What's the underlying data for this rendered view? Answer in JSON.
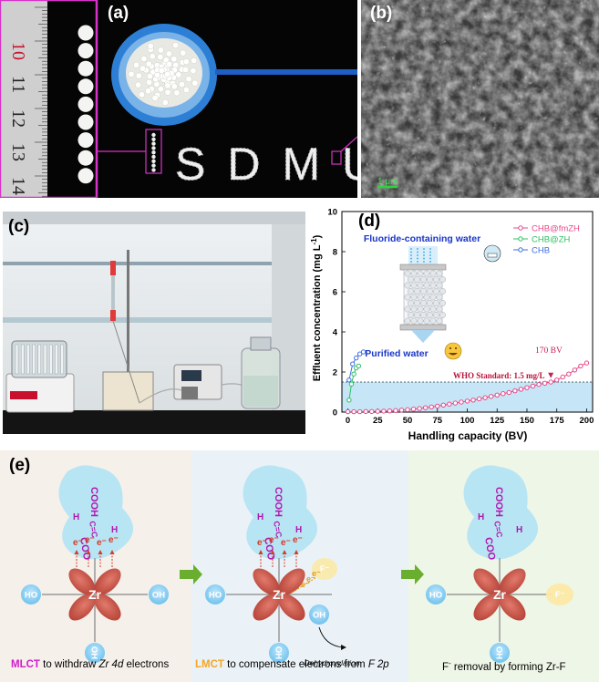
{
  "panel_a": {
    "label": "(a)",
    "ruler_numbers": [
      "10",
      "11",
      "12",
      "13",
      "14"
    ],
    "text": "SDMU"
  },
  "panel_b": {
    "label": "(b)",
    "scale_bar": "1 μm"
  },
  "panel_c": {
    "label": "(c)"
  },
  "panel_d": {
    "label": "(d)",
    "ylabel": "Effluent concentration (mg L",
    "ylabel_sup": "-1",
    "ylabel_end": ")",
    "xlabel": "Handling capacity (BV)",
    "inset_top": "Fluoride-containing water",
    "inset_bottom": "Purified water",
    "who_label": "WHO Standard: 1.5 mg/L",
    "bv_label": "170 BV",
    "xticks": [
      "0",
      "25",
      "50",
      "75",
      "100",
      "125",
      "150",
      "175",
      "200"
    ],
    "yticks": [
      "0",
      "2",
      "4",
      "6",
      "8",
      "10"
    ]
  },
  "chart_data": {
    "type": "line",
    "xlabel": "Handling capacity (BV)",
    "ylabel": "Effluent concentration (mg L-1)",
    "xlim": [
      -5,
      205
    ],
    "ylim": [
      0,
      10
    ],
    "threshold": 1.5,
    "legend_position": "top-right",
    "series": [
      {
        "name": "CHB@fmZH",
        "color": "#e8488a",
        "x": [
          0,
          5,
          10,
          15,
          20,
          25,
          30,
          35,
          40,
          45,
          50,
          55,
          60,
          65,
          70,
          75,
          80,
          85,
          90,
          95,
          100,
          105,
          110,
          115,
          120,
          125,
          130,
          135,
          140,
          145,
          150,
          155,
          160,
          165,
          170,
          175,
          180,
          185,
          190,
          195,
          200
        ],
        "y": [
          0.02,
          0.02,
          0.02,
          0.03,
          0.03,
          0.04,
          0.05,
          0.06,
          0.08,
          0.1,
          0.12,
          0.15,
          0.18,
          0.22,
          0.26,
          0.3,
          0.35,
          0.4,
          0.45,
          0.5,
          0.55,
          0.6,
          0.66,
          0.72,
          0.78,
          0.85,
          0.92,
          0.98,
          1.06,
          1.14,
          1.22,
          1.3,
          1.38,
          1.44,
          1.5,
          1.6,
          1.75,
          1.9,
          2.1,
          2.3,
          2.45
        ]
      },
      {
        "name": "CHB@ZH",
        "color": "#2fbf62",
        "x": [
          1,
          3,
          5,
          7,
          9
        ],
        "y": [
          0.6,
          1.4,
          1.9,
          2.2,
          2.3
        ]
      },
      {
        "name": "CHB",
        "color": "#3d6fe0",
        "x": [
          1,
          4,
          7,
          10,
          13
        ],
        "y": [
          1.6,
          2.4,
          2.7,
          2.9,
          3.0
        ]
      }
    ]
  },
  "panel_e": {
    "label": "(e)",
    "center_atom": "Zr",
    "oh_left": "HO",
    "oh_right": "OH",
    "oh_bottom": "OH",
    "electron": "e⁻",
    "fluoride": "F⁻",
    "dehydroxylation": "Dehydroxylation",
    "cooh": "COOH",
    "coo": "COO",
    "h": "H",
    "cc": "C=C",
    "caption1_a": "MLCT",
    "caption1_b": " to withdraw ",
    "caption1_c": "Zr 4d",
    "caption1_d": " electrons",
    "caption2_a": "LMCT",
    "caption2_b": " to compensate electrons from ",
    "caption2_c": "F 2p",
    "caption3_a": "F",
    "caption3_sup": "-",
    "caption3_b": " removal by forming Zr-F"
  }
}
